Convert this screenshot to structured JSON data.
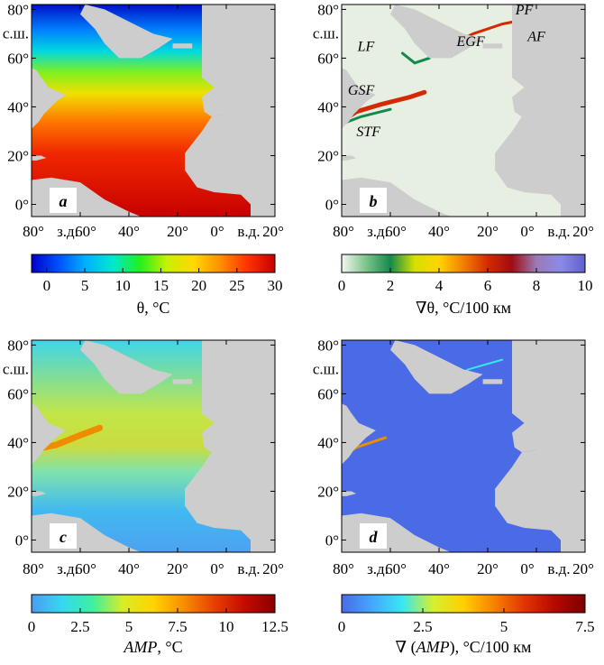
{
  "chart_data": [
    {
      "id": "a",
      "type": "heatmap",
      "panel_label": "a",
      "colorbar": {
        "label": "θ, °C",
        "ticks": [
          "0",
          "5",
          "10",
          "15",
          "20",
          "25",
          "30"
        ],
        "range": [
          -2,
          30
        ],
        "colors": [
          "#0000c8",
          "#0050ff",
          "#00b0ff",
          "#00e8d0",
          "#20f020",
          "#c8f000",
          "#ffd800",
          "#ff8c00",
          "#ff3000",
          "#c80000"
        ]
      },
      "annotations": []
    },
    {
      "id": "b",
      "type": "heatmap",
      "panel_label": "b",
      "colorbar": {
        "label": "∇θ, °C/100 км",
        "ticks": [
          "0",
          "2",
          "4",
          "6",
          "8",
          "10"
        ],
        "range": [
          0,
          10
        ],
        "colors": [
          "#f4f7f2",
          "#7cc48a",
          "#138a4c",
          "#d6e000",
          "#ffd400",
          "#f28000",
          "#d52a00",
          "#9e0c14",
          "#9c7ab4",
          "#8a8ae8",
          "#6060d0"
        ]
      },
      "annotations": [
        "PF",
        "AF",
        "EGF",
        "LF",
        "GSF",
        "STF"
      ]
    },
    {
      "id": "c",
      "type": "heatmap",
      "panel_label": "c",
      "colorbar": {
        "label_main": "AMP",
        "label_unit": ", °C",
        "ticks": [
          "0",
          "2.5",
          "5",
          "7.5",
          "10",
          "12.5"
        ],
        "range": [
          0,
          12.5
        ],
        "colors": [
          "#4c9cf0",
          "#36d8f0",
          "#3cf0a0",
          "#d8ec28",
          "#ffd400",
          "#f88e00",
          "#e84000",
          "#c40a00",
          "#8a0000"
        ]
      },
      "annotations": []
    },
    {
      "id": "d",
      "type": "heatmap",
      "panel_label": "d",
      "colorbar": {
        "label_pre": "∇ (",
        "label_main": "AMP",
        "label_unit": "), °C/100 км",
        "ticks": [
          "0",
          "2.5",
          "5",
          "7.5"
        ],
        "range": [
          0,
          7.5
        ],
        "colors": [
          "#4a6ae6",
          "#42a8ff",
          "#38e8f0",
          "#d4f030",
          "#ffd000",
          "#f88200",
          "#e23400",
          "#b60800",
          "#7c0000"
        ]
      },
      "annotations": []
    }
  ],
  "axes": {
    "x_ticks": [
      "80°",
      "з.д.",
      "60°",
      "40°",
      "20°",
      "0°",
      "в.д.",
      "20°"
    ],
    "y_ticks": [
      "80°",
      "с.ш.",
      "60°",
      "40°",
      "20°",
      "0°"
    ],
    "xlim": [
      -80,
      20
    ],
    "ylim": [
      -5,
      82
    ]
  },
  "colors": {
    "land": "#cdcdcd",
    "frame": "#000000"
  }
}
